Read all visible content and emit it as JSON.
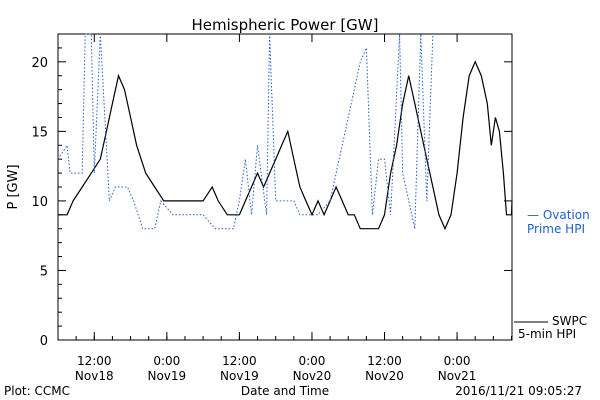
{
  "chart_data": {
    "type": "line",
    "title": "Hemispheric Power [GW]",
    "ylabel": "P [GW]",
    "xlabel": "Date and Time",
    "ylim": [
      0,
      22
    ],
    "xlim": [
      "2016-11-18 06:00",
      "2016-11-21 09:05"
    ],
    "grid": false,
    "yticks": [
      {
        "value": 0,
        "label": "0"
      },
      {
        "value": 5,
        "label": "5"
      },
      {
        "value": 10,
        "label": "10"
      },
      {
        "value": 15,
        "label": "15"
      },
      {
        "value": 20,
        "label": "20"
      }
    ],
    "xticks": [
      {
        "x": "2016-11-18 12:00",
        "time": "12:00",
        "day": "Nov18"
      },
      {
        "x": "2016-11-19 00:00",
        "time": "0:00",
        "day": "Nov19"
      },
      {
        "x": "2016-11-19 12:00",
        "time": "12:00",
        "day": "Nov19"
      },
      {
        "x": "2016-11-20 00:00",
        "time": "0:00",
        "day": "Nov20"
      },
      {
        "x": "2016-11-20 12:00",
        "time": "12:00",
        "day": "Nov20"
      },
      {
        "x": "2016-11-21 00:00",
        "time": "0:00",
        "day": "Nov21"
      }
    ],
    "series": [
      {
        "name": "SWPC 5-min HPI",
        "color": "#000000",
        "style": "solid",
        "points": [
          [
            "2016-11-18 06:00",
            9
          ],
          [
            "2016-11-18 07:30",
            9
          ],
          [
            "2016-11-18 08:30",
            10
          ],
          [
            "2016-11-18 10:00",
            11
          ],
          [
            "2016-11-18 11:30",
            12
          ],
          [
            "2016-11-18 13:00",
            13
          ],
          [
            "2016-11-18 14:00",
            15
          ],
          [
            "2016-11-18 15:00",
            17
          ],
          [
            "2016-11-18 16:00",
            19
          ],
          [
            "2016-11-18 17:00",
            18
          ],
          [
            "2016-11-18 18:00",
            16
          ],
          [
            "2016-11-18 19:00",
            14
          ],
          [
            "2016-11-18 20:30",
            12
          ],
          [
            "2016-11-18 22:00",
            11
          ],
          [
            "2016-11-18 23:30",
            10
          ],
          [
            "2016-11-19 02:00",
            10
          ],
          [
            "2016-11-19 06:00",
            10
          ],
          [
            "2016-11-19 07:30",
            11
          ],
          [
            "2016-11-19 08:30",
            10
          ],
          [
            "2016-11-19 10:00",
            9
          ],
          [
            "2016-11-19 12:00",
            9
          ],
          [
            "2016-11-19 13:00",
            10
          ],
          [
            "2016-11-19 14:00",
            11
          ],
          [
            "2016-11-19 15:00",
            12
          ],
          [
            "2016-11-19 16:00",
            11
          ],
          [
            "2016-11-19 17:00",
            12
          ],
          [
            "2016-11-19 18:00",
            13
          ],
          [
            "2016-11-19 19:00",
            14
          ],
          [
            "2016-11-19 20:00",
            15
          ],
          [
            "2016-11-19 21:00",
            13
          ],
          [
            "2016-11-19 22:00",
            11
          ],
          [
            "2016-11-19 23:00",
            10
          ],
          [
            "2016-11-20 00:00",
            9
          ],
          [
            "2016-11-20 01:00",
            10
          ],
          [
            "2016-11-20 02:00",
            9
          ],
          [
            "2016-11-20 03:00",
            10
          ],
          [
            "2016-11-20 04:00",
            11
          ],
          [
            "2016-11-20 05:00",
            10
          ],
          [
            "2016-11-20 06:00",
            9
          ],
          [
            "2016-11-20 07:00",
            9
          ],
          [
            "2016-11-20 08:00",
            8
          ],
          [
            "2016-11-20 11:00",
            8
          ],
          [
            "2016-11-20 12:00",
            9
          ],
          [
            "2016-11-20 13:00",
            12
          ],
          [
            "2016-11-20 14:00",
            14
          ],
          [
            "2016-11-20 15:00",
            17
          ],
          [
            "2016-11-20 16:00",
            19
          ],
          [
            "2016-11-20 17:00",
            17
          ],
          [
            "2016-11-20 18:00",
            15
          ],
          [
            "2016-11-20 19:00",
            13
          ],
          [
            "2016-11-20 20:00",
            11
          ],
          [
            "2016-11-20 21:00",
            9
          ],
          [
            "2016-11-20 22:00",
            8
          ],
          [
            "2016-11-20 23:00",
            9
          ],
          [
            "2016-11-21 00:00",
            12
          ],
          [
            "2016-11-21 01:00",
            16
          ],
          [
            "2016-11-21 02:00",
            19
          ],
          [
            "2016-11-21 03:00",
            20
          ],
          [
            "2016-11-21 04:00",
            19
          ],
          [
            "2016-11-21 05:00",
            17
          ],
          [
            "2016-11-21 05:40",
            14
          ],
          [
            "2016-11-21 06:20",
            16
          ],
          [
            "2016-11-21 07:00",
            15
          ],
          [
            "2016-11-21 07:40",
            12
          ],
          [
            "2016-11-21 08:10",
            9
          ],
          [
            "2016-11-21 09:00",
            9
          ],
          [
            "2016-11-21 09:05",
            10
          ]
        ]
      },
      {
        "name": "Ovation Prime HPI",
        "color": "#1f5fd0",
        "style": "dotted",
        "points": [
          [
            "2016-11-18 06:00",
            13
          ],
          [
            "2016-11-18 07:30",
            14
          ],
          [
            "2016-11-18 08:00",
            12
          ],
          [
            "2016-11-18 10:00",
            12
          ],
          [
            "2016-11-18 10:30",
            22
          ],
          [
            "2016-11-18 11:30",
            22
          ],
          [
            "2016-11-18 12:00",
            12
          ],
          [
            "2016-11-18 13:00",
            22
          ],
          [
            "2016-11-18 14:30",
            10
          ],
          [
            "2016-11-18 15:30",
            11
          ],
          [
            "2016-11-18 17:30",
            11
          ],
          [
            "2016-11-18 18:30",
            10
          ],
          [
            "2016-11-18 20:00",
            8
          ],
          [
            "2016-11-18 22:00",
            8
          ],
          [
            "2016-11-18 23:00",
            10
          ],
          [
            "2016-11-19 01:00",
            9
          ],
          [
            "2016-11-19 06:00",
            9
          ],
          [
            "2016-11-19 08:00",
            8
          ],
          [
            "2016-11-19 11:00",
            8
          ],
          [
            "2016-11-19 12:00",
            10
          ],
          [
            "2016-11-19 13:00",
            13
          ],
          [
            "2016-11-19 14:00",
            9
          ],
          [
            "2016-11-19 15:00",
            14
          ],
          [
            "2016-11-19 16:30",
            9
          ],
          [
            "2016-11-19 17:00",
            22
          ],
          [
            "2016-11-19 18:00",
            10
          ],
          [
            "2016-11-19 21:00",
            10
          ],
          [
            "2016-11-19 22:00",
            9
          ],
          [
            "2016-11-20 01:00",
            9
          ],
          [
            "2016-11-20 03:00",
            10
          ],
          [
            "2016-11-20 05:00",
            14
          ],
          [
            "2016-11-20 08:00",
            20
          ],
          [
            "2016-11-20 09:00",
            21
          ],
          [
            "2016-11-20 10:00",
            9
          ],
          [
            "2016-11-20 11:00",
            13
          ],
          [
            "2016-11-20 12:00",
            13
          ],
          [
            "2016-11-20 13:00",
            9
          ],
          [
            "2016-11-20 14:30",
            22
          ],
          [
            "2016-11-20 15:00",
            12
          ],
          [
            "2016-11-20 17:00",
            8
          ],
          [
            "2016-11-20 18:00",
            22
          ],
          [
            "2016-11-20 19:00",
            10
          ],
          [
            "2016-11-20 20:00",
            22
          ]
        ]
      }
    ],
    "legend": {
      "ovation_line1": "— Ovation",
      "ovation_line2": "Prime HPI",
      "swpc_line1": "SWPC",
      "swpc_line2": "5-min HPI"
    }
  },
  "footer": {
    "plot_credit": "Plot: CCMC",
    "timestamp": "2016/11/21 09:05:27"
  }
}
